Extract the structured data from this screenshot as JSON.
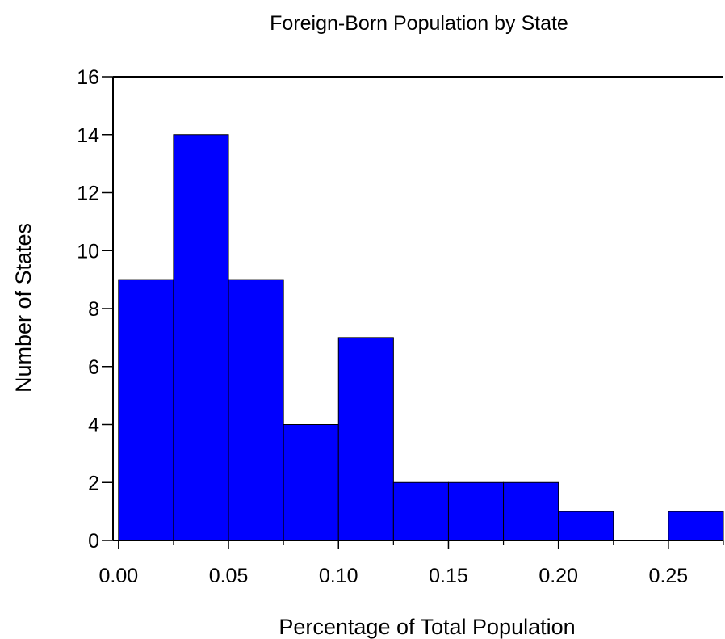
{
  "chart_data": {
    "type": "bar",
    "title": "Foreign-Born Population by State",
    "xlabel": "Percentage of Total Population",
    "ylabel": "Number of States",
    "bin_edges": [
      0.0,
      0.025,
      0.05,
      0.075,
      0.1,
      0.125,
      0.15,
      0.175,
      0.2,
      0.225,
      0.25,
      0.275
    ],
    "values": [
      9,
      14,
      9,
      4,
      7,
      2,
      2,
      2,
      1,
      0,
      1
    ],
    "xlim": [
      -0.0025,
      0.275
    ],
    "ylim": [
      0,
      16
    ],
    "x_ticks": [
      "0.00",
      "0.05",
      "0.10",
      "0.15",
      "0.20",
      "0.25"
    ],
    "y_ticks": [
      "0",
      "2",
      "4",
      "6",
      "8",
      "10",
      "12",
      "14",
      "16"
    ],
    "bar_color": "#0000ff",
    "grid": false,
    "legend": "none"
  }
}
